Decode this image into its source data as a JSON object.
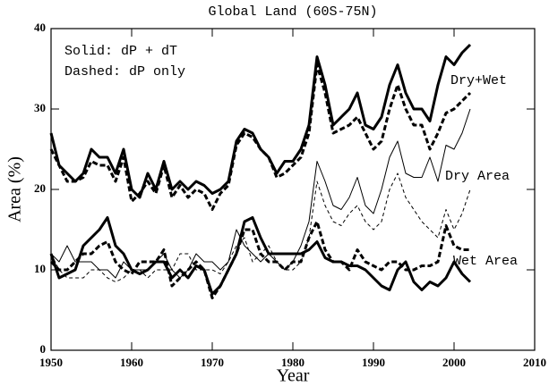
{
  "chart_data": {
    "type": "line",
    "title": "Global Land (60S-75N)",
    "x_label": "Year",
    "y_label": "Area (%)",
    "annotations": [
      "Solid: dP + dT",
      "Dashed: dP only",
      "Dry+Wet",
      "Dry Area",
      "Wet Area"
    ],
    "xlim": [
      1950,
      2010
    ],
    "xticks": [
      1950,
      1960,
      1970,
      1980,
      1990,
      2000,
      2010
    ],
    "ylim": [
      0,
      40
    ],
    "yticks": [
      0,
      10,
      20,
      30,
      40
    ],
    "x": [
      1950,
      1951,
      1952,
      1953,
      1954,
      1955,
      1956,
      1957,
      1958,
      1959,
      1960,
      1961,
      1962,
      1963,
      1964,
      1965,
      1966,
      1967,
      1968,
      1969,
      1970,
      1971,
      1972,
      1973,
      1974,
      1975,
      1976,
      1977,
      1978,
      1979,
      1980,
      1981,
      1982,
      1983,
      1984,
      1985,
      1986,
      1987,
      1988,
      1989,
      1990,
      1991,
      1992,
      1993,
      1994,
      1995,
      1996,
      1997,
      1998,
      1999,
      2000,
      2001,
      2002
    ],
    "series": [
      {
        "color": "#000000",
        "dashed": false,
        "weight": "thick",
        "values": [
          27,
          23,
          22,
          21,
          22,
          25,
          24,
          24,
          22,
          25,
          20,
          19,
          22,
          20,
          23.5,
          20,
          21,
          20,
          21,
          20.5,
          19.5,
          20,
          21,
          26,
          27.5,
          27,
          25,
          24,
          22,
          23.5,
          23.5,
          25,
          28,
          36.5,
          33,
          28,
          29,
          30,
          32,
          28,
          27.5,
          29,
          33,
          35.5,
          32,
          30,
          30,
          28.5,
          33,
          36.5,
          35.5,
          37,
          38
        ]
      },
      {
        "color": "#000000",
        "dashed": true,
        "weight": "thick",
        "values": [
          25,
          23,
          21,
          21,
          21.5,
          23.5,
          23,
          23,
          21,
          24,
          18.5,
          19.5,
          21,
          19.5,
          23,
          19,
          20.5,
          19,
          20,
          19.5,
          17.5,
          19.5,
          20.5,
          25.5,
          27,
          26.5,
          25,
          24,
          21.5,
          22,
          23,
          24,
          27,
          35.5,
          32,
          27,
          27.5,
          28,
          29,
          27,
          25,
          26,
          30,
          33,
          30,
          28,
          28,
          25,
          27,
          29.5,
          30,
          31,
          32
        ]
      },
      {
        "color": "#000000",
        "dashed": false,
        "weight": "thin",
        "values": [
          12,
          11,
          13,
          11,
          11,
          11,
          10,
          10,
          9,
          11,
          10,
          10,
          10,
          11,
          12,
          10,
          9,
          10,
          12,
          11,
          11,
          10,
          11,
          15,
          13,
          12,
          11,
          12,
          11,
          10,
          11,
          13,
          16,
          23.5,
          21,
          18,
          17.5,
          19,
          21.5,
          18,
          17,
          20,
          24,
          26,
          22,
          21.5,
          21.5,
          24,
          21,
          25.5,
          25,
          27,
          30
        ]
      },
      {
        "color": "#000000",
        "dashed": true,
        "weight": "thin",
        "values": [
          12,
          10,
          9,
          9,
          9,
          10,
          10,
          9,
          8.5,
          9,
          10,
          10,
          9,
          10,
          10,
          10,
          12,
          12,
          10,
          10,
          10,
          9.5,
          11,
          13,
          14,
          11,
          12,
          13,
          11,
          10,
          10,
          11,
          14,
          21,
          18,
          16,
          15.5,
          17,
          18,
          16,
          15,
          16,
          20,
          22,
          19,
          17.5,
          16,
          15,
          14,
          17.5,
          15,
          17,
          20
        ]
      },
      {
        "color": "#000000",
        "dashed": false,
        "weight": "thick",
        "values": [
          12,
          9,
          9.5,
          10,
          13,
          14,
          15,
          16.5,
          13,
          12,
          10,
          9.5,
          10,
          11,
          11,
          9,
          10,
          9,
          10.5,
          10,
          7,
          8,
          10,
          12,
          16,
          16.5,
          14,
          12,
          12,
          12,
          12,
          12,
          12.5,
          13.5,
          11.5,
          11,
          11,
          10.5,
          10.5,
          10,
          9,
          8,
          7.5,
          10,
          11,
          8.5,
          7.5,
          8.5,
          8,
          9,
          11,
          9.5,
          8.5
        ]
      },
      {
        "color": "#000000",
        "dashed": true,
        "weight": "thick",
        "values": [
          11,
          10,
          10,
          11,
          12,
          12,
          13,
          13.5,
          11,
          10,
          9.5,
          11,
          11,
          11,
          12.5,
          8,
          9,
          10,
          11,
          10,
          6.5,
          8,
          10,
          12,
          15,
          15,
          12,
          11,
          11,
          10,
          11,
          11,
          14,
          16,
          12.5,
          11,
          11,
          10,
          12.5,
          11,
          10.5,
          10,
          11,
          11,
          10,
          10,
          10.5,
          10.5,
          11,
          15.5,
          13,
          12.5,
          12.5
        ]
      }
    ]
  }
}
